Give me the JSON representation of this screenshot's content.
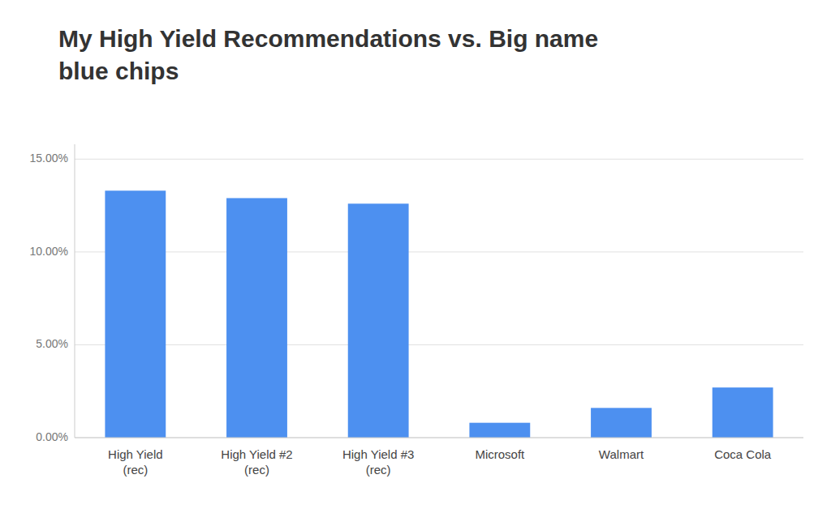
{
  "chart_data": {
    "type": "bar",
    "title": "My High Yield Recommendations vs. Big name\nblue chips",
    "categories": [
      "High Yield\n(rec)",
      "High Yield #2\n(rec)",
      "High Yield #3\n(rec)",
      "Microsoft",
      "Walmart",
      "Coca Cola"
    ],
    "values": [
      0.133,
      0.129,
      0.126,
      0.008,
      0.016,
      0.027
    ],
    "color": "#4d90f0",
    "ylim": [
      0,
      0.158
    ],
    "yticks": [
      {
        "value": 0.0,
        "label": "0.00%"
      },
      {
        "value": 0.05,
        "label": "5.00%"
      },
      {
        "value": 0.1,
        "label": "10.00%"
      },
      {
        "value": 0.15,
        "label": "15.00%"
      }
    ],
    "grid": true
  }
}
